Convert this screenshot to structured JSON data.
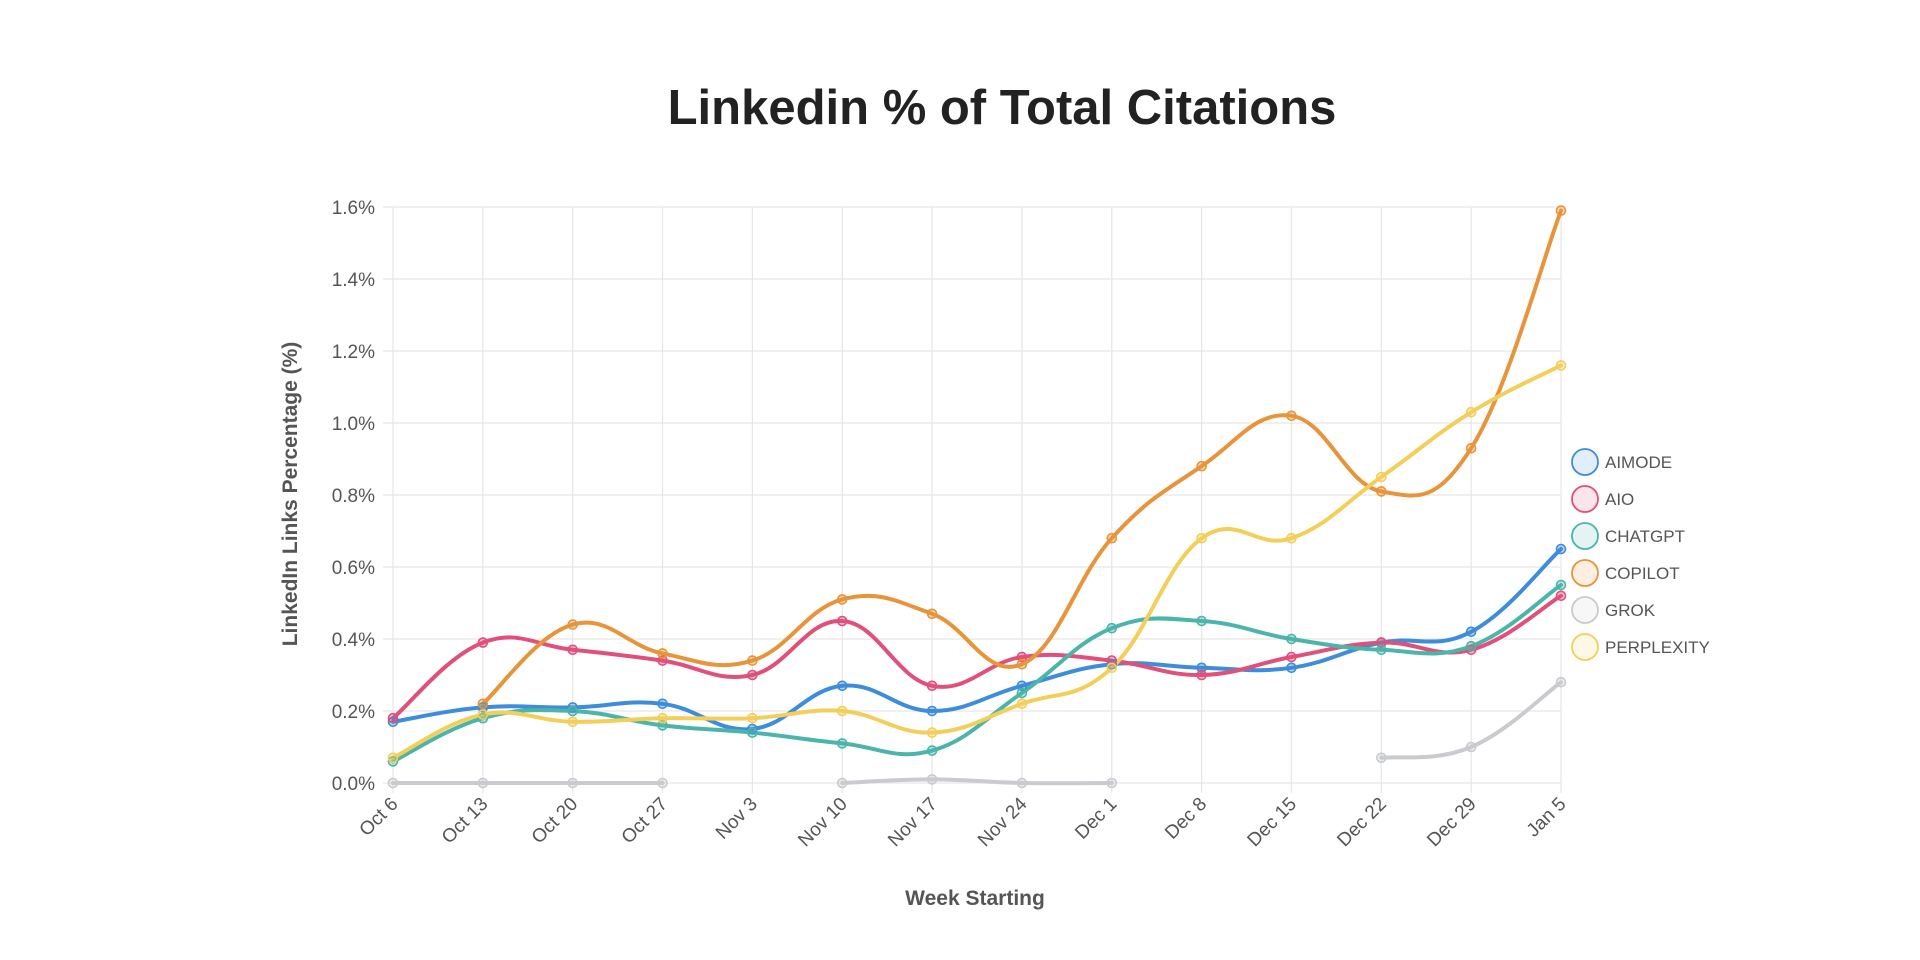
{
  "chart_data": {
    "type": "line",
    "title": "Linkedin % of Total Citations",
    "xlabel": "Week Starting",
    "ylabel": "LinkedIn Links Percentage (%)",
    "ylim": [
      0,
      1.6
    ],
    "yticks": [
      0,
      0.2,
      0.4,
      0.6,
      0.8,
      1.0,
      1.2,
      1.4,
      1.6
    ],
    "ytick_labels": [
      "0.0%",
      "0.2%",
      "0.4%",
      "0.6%",
      "0.8%",
      "1.0%",
      "1.2%",
      "1.4%",
      "1.6%"
    ],
    "grid": true,
    "legend_position": "right",
    "categories": [
      "Oct 6",
      "Oct 13",
      "Oct 20",
      "Oct 27",
      "Nov 3",
      "Nov 10",
      "Nov 17",
      "Nov 24",
      "Dec 1",
      "Dec 8",
      "Dec 15",
      "Dec 22",
      "Dec 29",
      "Jan 5"
    ],
    "series": [
      {
        "name": "AIMODE",
        "color": "#3d8ddb",
        "values": [
          0.17,
          0.21,
          0.21,
          0.22,
          0.15,
          0.27,
          0.2,
          0.27,
          0.33,
          0.32,
          0.32,
          0.39,
          0.42,
          0.65
        ]
      },
      {
        "name": "AIO",
        "color": "#e0507a",
        "values": [
          0.18,
          0.39,
          0.37,
          0.34,
          0.3,
          0.45,
          0.27,
          0.35,
          0.34,
          0.3,
          0.35,
          0.39,
          0.37,
          0.52
        ]
      },
      {
        "name": "CHATGPT",
        "color": "#4cb5ab",
        "values": [
          0.06,
          0.18,
          0.2,
          0.16,
          0.14,
          0.11,
          0.09,
          0.25,
          0.43,
          0.45,
          0.4,
          0.37,
          0.38,
          0.55
        ]
      },
      {
        "name": "COPILOT",
        "color": "#e8943a",
        "values": [
          null,
          0.22,
          0.44,
          0.36,
          0.34,
          0.51,
          0.47,
          0.33,
          0.68,
          0.88,
          1.02,
          0.81,
          0.93,
          1.59
        ]
      },
      {
        "name": "GROK",
        "color": "#c9cbcf",
        "values": [
          0.0,
          0.0,
          0.0,
          0.0,
          null,
          0.0,
          0.01,
          0.0,
          0.0,
          null,
          null,
          0.07,
          0.1,
          0.28
        ]
      },
      {
        "name": "PERPLEXITY",
        "color": "#f3cf5a",
        "values": [
          0.07,
          0.19,
          0.17,
          0.18,
          0.18,
          0.2,
          0.14,
          0.22,
          0.32,
          0.68,
          0.68,
          0.85,
          1.03,
          1.16
        ]
      }
    ]
  }
}
